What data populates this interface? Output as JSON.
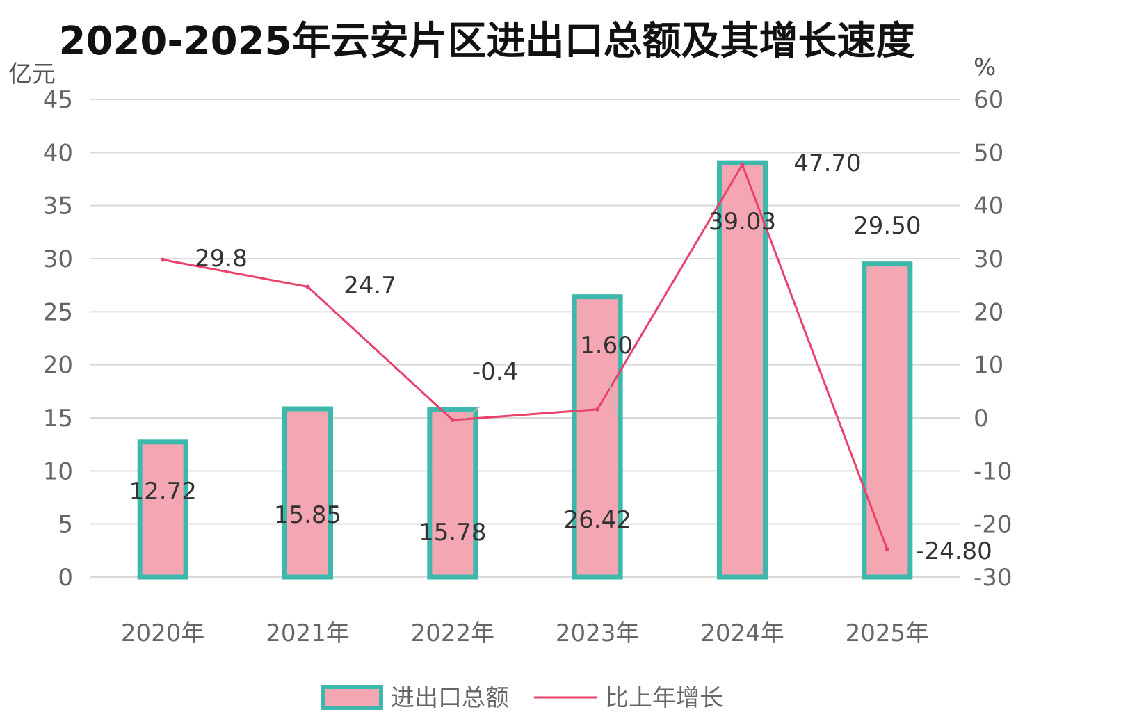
{
  "chart_data": {
    "type": "bar",
    "title": "2020-2025年云安片区进出口总额及其增长速度",
    "categories": [
      "2020年",
      "2021年",
      "2022年",
      "2023年",
      "2024年",
      "2025年"
    ],
    "series": [
      {
        "name": "进出口总额",
        "type": "bar",
        "axis": "left",
        "values": [
          12.72,
          15.85,
          15.78,
          26.42,
          39.03,
          29.5
        ],
        "labels": [
          "12.72",
          "15.85",
          "15.78",
          "26.42",
          "39.03",
          "29.50"
        ],
        "color": "#F4A7B3",
        "border_color": "#3DB8AC"
      },
      {
        "name": "比上年增长",
        "type": "line",
        "axis": "right",
        "values": [
          29.8,
          24.7,
          -0.4,
          1.6,
          47.7,
          -24.8
        ],
        "labels": [
          "29.8",
          "24.7",
          "-0.4",
          "1.60",
          "47.70",
          "-24.80"
        ],
        "color": "#E8426A"
      }
    ],
    "y_left": {
      "unit": "亿元",
      "min": 0,
      "max": 45,
      "ticks": [
        0,
        5,
        10,
        15,
        20,
        25,
        30,
        35,
        40,
        45
      ]
    },
    "y_right": {
      "unit": "%",
      "min": -30,
      "max": 60,
      "ticks": [
        -30,
        -20,
        -10,
        0,
        10,
        20,
        30,
        40,
        50,
        60
      ]
    },
    "grid": true,
    "legend_position": "bottom"
  }
}
